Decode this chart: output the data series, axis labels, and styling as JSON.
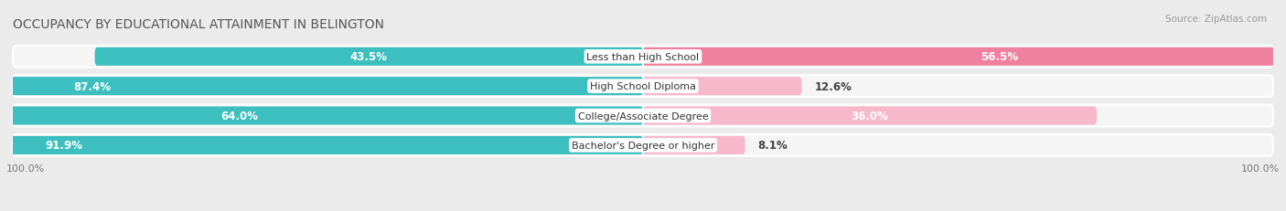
{
  "title": "OCCUPANCY BY EDUCATIONAL ATTAINMENT IN BELINGTON",
  "source": "Source: ZipAtlas.com",
  "categories": [
    "Less than High School",
    "High School Diploma",
    "College/Associate Degree",
    "Bachelor's Degree or higher"
  ],
  "owner_pct": [
    43.5,
    87.4,
    64.0,
    91.9
  ],
  "renter_pct": [
    56.5,
    12.6,
    36.0,
    8.1
  ],
  "owner_color": "#3DBFBF",
  "renter_color": "#F080A0",
  "renter_color_light": "#F8B8CC",
  "bg_color": "#EBEBEB",
  "row_bg_color": "#F5F5F5",
  "title_fontsize": 10,
  "label_fontsize": 8.5,
  "axis_label_fontsize": 8,
  "legend_fontsize": 8.5,
  "bar_height": 0.62,
  "left_label": "100.0%",
  "right_label": "100.0%"
}
